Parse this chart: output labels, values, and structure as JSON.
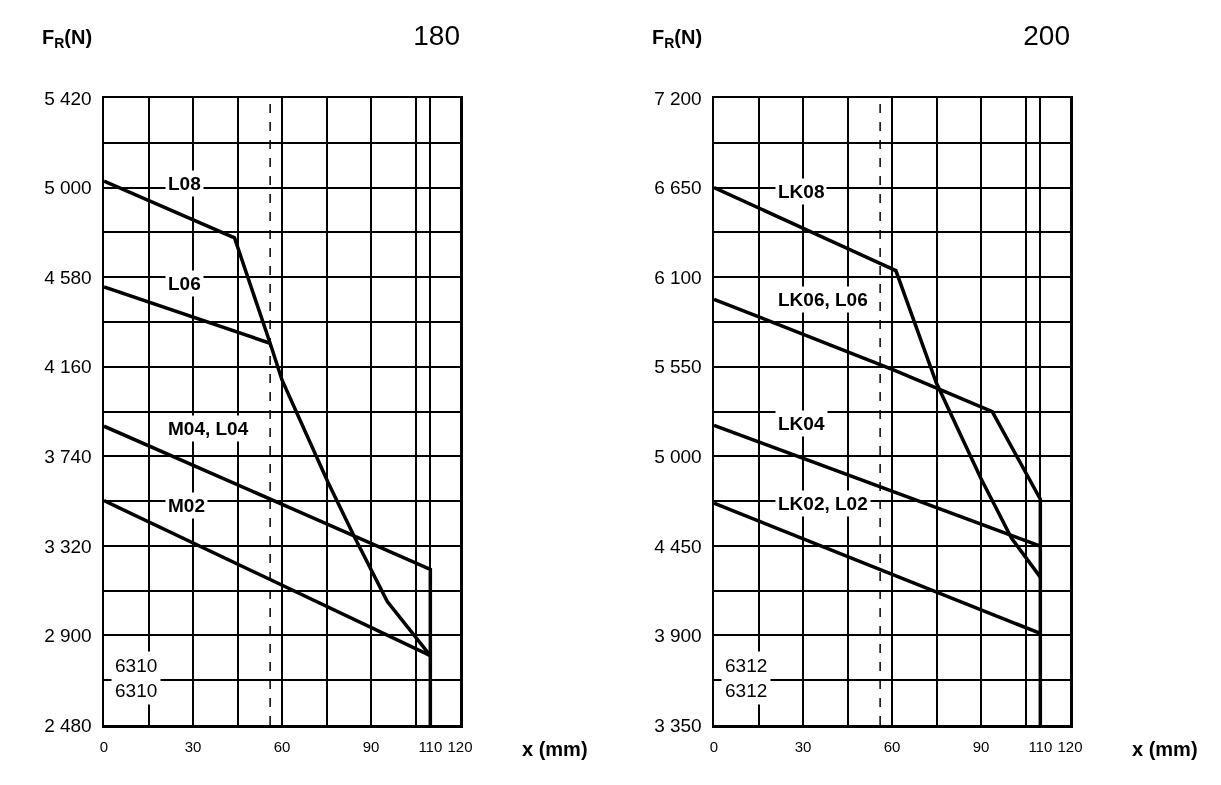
{
  "chart_data": [
    {
      "type": "line",
      "title": "180",
      "xlabel": "x (mm)",
      "ylabel": "F$_{R}$(N)",
      "grid": true,
      "legend": false,
      "xlim": [
        0,
        120
      ],
      "xticks": [
        0,
        {
          "value": 15,
          "label": null
        },
        30,
        {
          "value": 45,
          "label": null
        },
        60,
        {
          "value": 75,
          "label": null
        },
        90,
        {
          "value": 105,
          "label": null
        },
        110,
        120
      ],
      "ylim": [
        2480,
        5420
      ],
      "yticks": [
        {
          "value": 2480,
          "label": "2 480"
        },
        {
          "value": 2690,
          "label": null
        },
        {
          "value": 2900,
          "label": "2 900"
        },
        {
          "value": 3110,
          "label": null
        },
        {
          "value": 3320,
          "label": "3 320"
        },
        {
          "value": 3530,
          "label": null
        },
        {
          "value": 3740,
          "label": "3 740"
        },
        {
          "value": 3950,
          "label": null
        },
        {
          "value": 4160,
          "label": "4 160"
        },
        {
          "value": 4370,
          "label": null
        },
        {
          "value": 4580,
          "label": "4 580"
        },
        {
          "value": 4790,
          "label": null
        },
        {
          "value": 5000,
          "label": "5 000"
        },
        {
          "value": 5210,
          "label": null
        },
        {
          "value": 5420,
          "label": "5 420"
        }
      ],
      "series": [
        {
          "name": "L08",
          "color": "#000000",
          "x": [
            0,
            44,
            56,
            60,
            75.5,
            84.6,
            95.5,
            110
          ],
          "values": [
            5030,
            4764,
            4270,
            4098,
            3618,
            3357,
            3059,
            2805
          ]
        },
        {
          "name": "L06",
          "color": "#000000",
          "x": [
            0,
            56
          ],
          "values": [
            4534,
            4270
          ]
        },
        {
          "name": "M04, L04",
          "color": "#000000",
          "x": [
            0,
            110,
            110
          ],
          "values": [
            3881,
            3210,
            2480
          ]
        },
        {
          "name": "M02",
          "color": "#000000",
          "x": [
            0,
            110
          ],
          "values": [
            3532,
            2805
          ]
        }
      ],
      "ref_lines": [
        {
          "axis": "x",
          "value": 56,
          "line_style": "dashed",
          "color": "#000000"
        }
      ],
      "annotations": [
        "6310\n6310"
      ]
    },
    {
      "type": "line",
      "title": "200",
      "xlabel": "x (mm)",
      "ylabel": "F$_{R}$(N)",
      "grid": true,
      "legend": false,
      "xlim": [
        0,
        120
      ],
      "xticks": [
        0,
        {
          "value": 15,
          "label": null
        },
        30,
        {
          "value": 45,
          "label": null
        },
        60,
        {
          "value": 75,
          "label": null
        },
        90,
        {
          "value": 105,
          "label": null
        },
        110,
        120
      ],
      "ylim": [
        3350,
        7200
      ],
      "yticks": [
        {
          "value": 3350,
          "label": "3 350"
        },
        {
          "value": 3625,
          "label": null
        },
        {
          "value": 3900,
          "label": "3 900"
        },
        {
          "value": 4175,
          "label": null
        },
        {
          "value": 4450,
          "label": "4 450"
        },
        {
          "value": 4725,
          "label": null
        },
        {
          "value": 5000,
          "label": "5 000"
        },
        {
          "value": 5275,
          "label": null
        },
        {
          "value": 5550,
          "label": "5 550"
        },
        {
          "value": 5825,
          "label": null
        },
        {
          "value": 6100,
          "label": "6 100"
        },
        {
          "value": 6375,
          "label": null
        },
        {
          "value": 6650,
          "label": "6 650"
        },
        {
          "value": 6925,
          "label": null
        },
        {
          "value": 7200,
          "label": "7 200"
        }
      ],
      "series": [
        {
          "name": "LK08",
          "color": "#000000",
          "x": [
            0,
            61.3,
            74.9,
            89.9,
            100.3,
            110
          ],
          "values": [
            6650,
            6140,
            5453,
            4867,
            4497,
            4258
          ]
        },
        {
          "name": "LK06, L06",
          "color": "#000000",
          "x": [
            0,
            60.7,
            93.8,
            110,
            110
          ],
          "values": [
            5964,
            5529,
            5274,
            4736,
            3350
          ]
        },
        {
          "name": "LK04",
          "color": "#000000",
          "x": [
            0,
            110
          ],
          "values": [
            5190,
            4449
          ]
        },
        {
          "name": "LK02, L02",
          "color": "#000000",
          "x": [
            0,
            110
          ],
          "values": [
            4712,
            3912
          ]
        }
      ],
      "ref_lines": [
        {
          "axis": "x",
          "value": 56,
          "line_style": "dashed",
          "color": "#000000"
        }
      ],
      "annotations": [
        "6312\n6312"
      ]
    }
  ]
}
